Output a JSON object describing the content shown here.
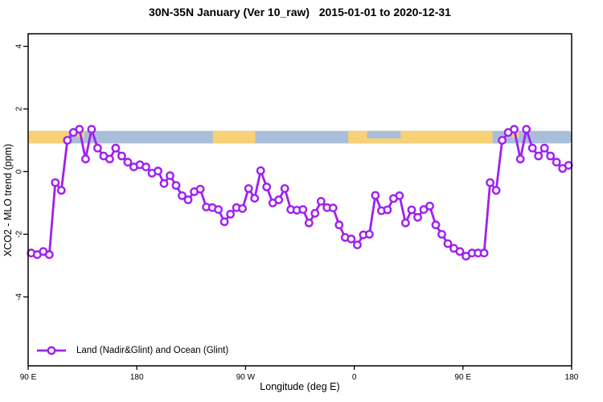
{
  "title": "30N-35N January (Ver 10_raw)   2015-01-01 to 2020-12-31",
  "x_axis": {
    "label": "Longitude (deg E)",
    "ticks": [
      {
        "deg": 90,
        "label": "90 E"
      },
      {
        "deg": 180,
        "label": "180"
      },
      {
        "deg": 270,
        "label": "90 W"
      },
      {
        "deg": 360,
        "label": "0"
      },
      {
        "deg": 450,
        "label": "90 E"
      },
      {
        "deg": 540,
        "label": "180"
      }
    ]
  },
  "y_axis": {
    "label": "XCO2 - MLO trend (ppm)",
    "ticks": [
      {
        "v": 4,
        "label": "4"
      },
      {
        "v": 2,
        "label": "2"
      },
      {
        "v": 0,
        "label": "0"
      },
      {
        "v": -2,
        "label": "-2"
      },
      {
        "v": -4,
        "label": "-4"
      }
    ]
  },
  "legend": {
    "label": "Land (Nadir&Glint) and Ocean (Glint)"
  },
  "colors": {
    "series": "#A020F0",
    "land": "#F8D176",
    "ocean": "#A9BFD9",
    "frame": "#000000",
    "text": "#000000",
    "background": "#ffffff"
  },
  "chart_data": {
    "type": "line",
    "title": "30N-35N January (Ver 10_raw)   2015-01-01 to 2020-12-31",
    "xlabel": "Longitude (deg E)",
    "ylabel": "XCO2 - MLO trend (ppm)",
    "xlim": [
      90,
      540
    ],
    "ylim": [
      -6.2,
      4.4
    ],
    "grid": false,
    "legend_position": "bottom-left-inside",
    "band": {
      "description": "land/ocean strip along 30N-35N",
      "y_top": 1.3,
      "y_bottom": 0.9,
      "land_segments": [
        {
          "from": 90,
          "to": 123.5,
          "frac": 1.0
        },
        {
          "from": 130.5,
          "to": 136.5,
          "frac": 0.55
        },
        {
          "from": 243,
          "to": 278,
          "frac": 1.0
        },
        {
          "from": 355,
          "to": 474.5,
          "frac": 1.0
        },
        {
          "from": 490.5,
          "to": 496.5,
          "frac": 0.55
        }
      ],
      "ocean_overlays": [
        {
          "from": 370.5,
          "to": 398.5,
          "frac": 0.6
        }
      ]
    },
    "series": [
      {
        "name": "Land (Nadir&Glint) and Ocean (Glint)",
        "marker": "open-circle",
        "points": [
          [
            92.5,
            -2.6
          ],
          [
            97.5,
            -2.65
          ],
          [
            102.5,
            -2.55
          ],
          [
            107.5,
            -2.65
          ],
          [
            112.5,
            -0.35
          ],
          [
            117.5,
            -0.6
          ],
          [
            122.5,
            1.0
          ],
          [
            127.5,
            1.25
          ],
          [
            132.5,
            1.35
          ],
          [
            137.5,
            0.4
          ],
          [
            142.5,
            1.35
          ],
          [
            147.5,
            0.75
          ],
          [
            152.5,
            0.5
          ],
          [
            157.5,
            0.4
          ],
          [
            162.5,
            0.75
          ],
          [
            167.5,
            0.5
          ],
          [
            172.5,
            0.3
          ],
          [
            177.5,
            0.15
          ],
          [
            182.5,
            0.22
          ],
          [
            187.5,
            0.15
          ],
          [
            192.5,
            -0.05
          ],
          [
            197.5,
            0.02
          ],
          [
            202.5,
            -0.38
          ],
          [
            207.5,
            -0.13
          ],
          [
            212.5,
            -0.44
          ],
          [
            217.5,
            -0.77
          ],
          [
            222.5,
            -0.9
          ],
          [
            227.5,
            -0.64
          ],
          [
            232.5,
            -0.56
          ],
          [
            237.5,
            -1.13
          ],
          [
            242.5,
            -1.15
          ],
          [
            247.5,
            -1.21
          ],
          [
            252.5,
            -1.6
          ],
          [
            257.5,
            -1.36
          ],
          [
            262.5,
            -1.15
          ],
          [
            267.5,
            -1.18
          ],
          [
            272.5,
            -0.54
          ],
          [
            277.5,
            -0.85
          ],
          [
            282.5,
            0.03
          ],
          [
            287.5,
            -0.49
          ],
          [
            292.5,
            -1.0
          ],
          [
            297.5,
            -0.9
          ],
          [
            302.5,
            -0.54
          ],
          [
            307.5,
            -1.21
          ],
          [
            312.5,
            -1.23
          ],
          [
            317.5,
            -1.21
          ],
          [
            322.5,
            -1.64
          ],
          [
            327.5,
            -1.33
          ],
          [
            332.5,
            -0.95
          ],
          [
            337.5,
            -1.15
          ],
          [
            342.5,
            -1.16
          ],
          [
            347.5,
            -1.7
          ],
          [
            352.5,
            -2.1
          ],
          [
            357.5,
            -2.15
          ],
          [
            362.5,
            -2.34
          ],
          [
            367.5,
            -2.02
          ],
          [
            372.5,
            -2.0
          ],
          [
            377.5,
            -0.76
          ],
          [
            382.5,
            -1.25
          ],
          [
            387.5,
            -1.22
          ],
          [
            392.5,
            -0.86
          ],
          [
            397.5,
            -0.77
          ],
          [
            402.5,
            -1.64
          ],
          [
            407.5,
            -1.22
          ],
          [
            412.5,
            -1.46
          ],
          [
            417.5,
            -1.21
          ],
          [
            422.5,
            -1.1
          ],
          [
            427.5,
            -1.7
          ],
          [
            432.5,
            -2.0
          ],
          [
            437.5,
            -2.3
          ],
          [
            442.5,
            -2.45
          ],
          [
            447.5,
            -2.55
          ],
          [
            452.5,
            -2.7
          ],
          [
            457.5,
            -2.6
          ],
          [
            462.5,
            -2.6
          ],
          [
            467.5,
            -2.6
          ],
          [
            472.5,
            -0.35
          ],
          [
            477.5,
            -0.6
          ],
          [
            482.5,
            1.0
          ],
          [
            487.5,
            1.25
          ],
          [
            492.5,
            1.35
          ],
          [
            497.5,
            0.4
          ],
          [
            502.5,
            1.35
          ],
          [
            507.5,
            0.75
          ],
          [
            512.5,
            0.5
          ],
          [
            517.5,
            0.75
          ],
          [
            522.5,
            0.5
          ],
          [
            527.5,
            0.3
          ],
          [
            532.5,
            0.1
          ],
          [
            537.5,
            0.2
          ]
        ]
      }
    ]
  }
}
